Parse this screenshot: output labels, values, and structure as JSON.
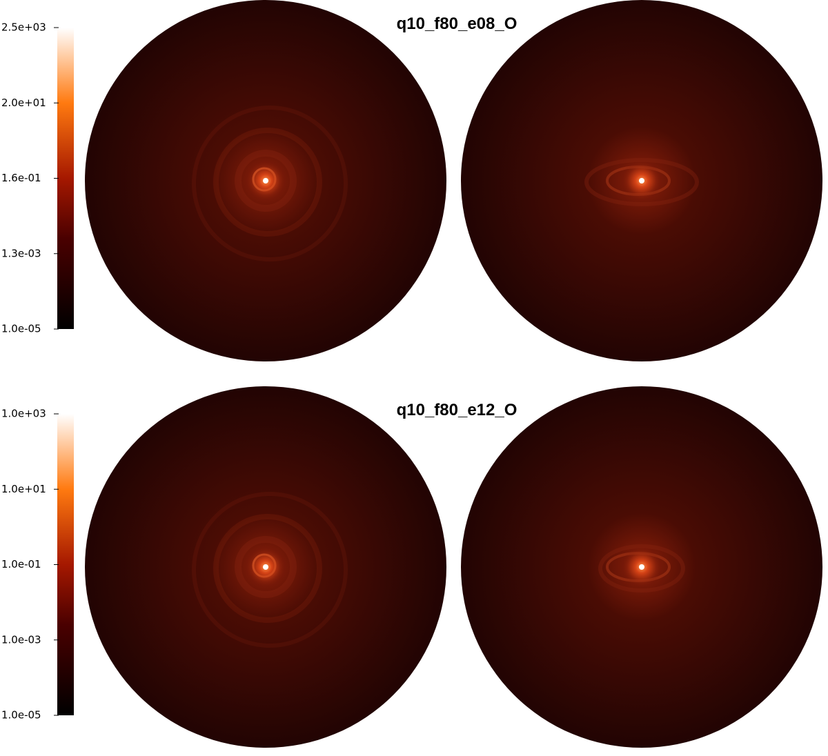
{
  "panels": [
    {
      "title": "q10_f80_e08_O",
      "colorbar": {
        "ticks": [
          "2.5e+03",
          "2.0e+01",
          "1.6e-01",
          "1.3e-03",
          "1.0e-05"
        ]
      }
    },
    {
      "title": "q10_f80_e12_O",
      "colorbar": {
        "ticks": [
          "1.0e+03",
          "1.0e+01",
          "1.0e-01",
          "1.0e-03",
          "1.0e-05"
        ]
      }
    }
  ]
}
